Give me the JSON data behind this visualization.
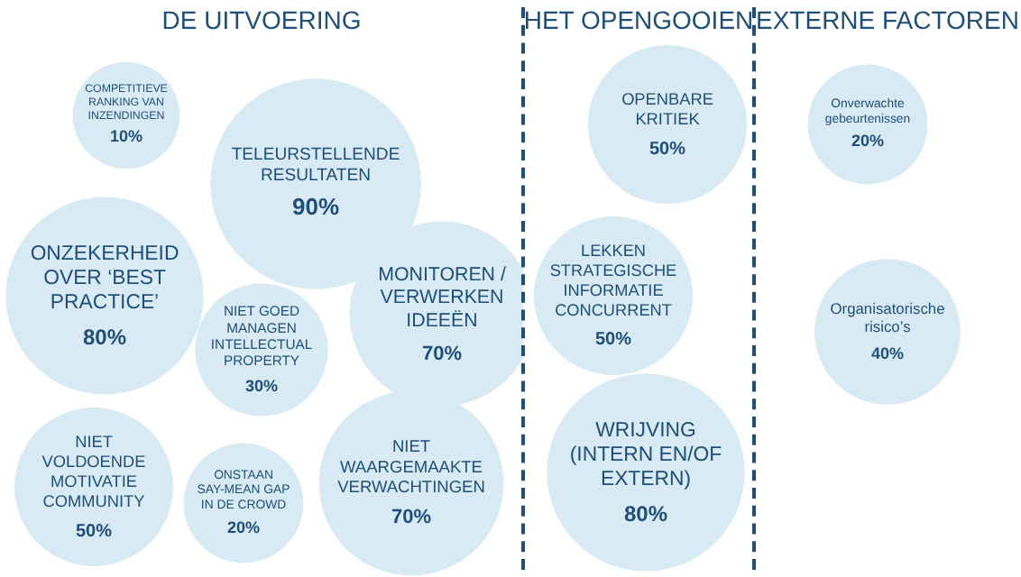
{
  "chart_data": [
    {
      "type": "other",
      "title": "DE UITVOERING",
      "color": "#d8eaf3",
      "categories": [
        "COMPETITIEVE RANKING VAN INZENDINGEN",
        "TELEURSTELLENDE RESULTATEN",
        "ONZEKERHEID OVER ‘BEST PRACTICE’",
        "MONITOREN / VERWERKEN IDEEËN",
        "NIET GOED MANAGEN INTELLECTUAL PROPERTY",
        "NIET VOLDOENDE MOTIVATIE COMMUNITY",
        "ONSTAAN SAY-MEAN GAP IN DE CROWD",
        "NIET WAARGEMAAKTE VERWACHTINGEN"
      ],
      "values": [
        10,
        90,
        80,
        70,
        30,
        50,
        20,
        70
      ],
      "value_labels": [
        "10%",
        "90%",
        "80%",
        "70%",
        "30%",
        "50%",
        "20%",
        "70%"
      ]
    },
    {
      "type": "other",
      "title": "HET OPENGOOIEN",
      "color": "#d8eaf3",
      "categories": [
        "OPENBARE KRITIEK",
        "LEKKEN STRATEGISCHE INFORMATIE CONCURRENT",
        "WRIJVING (INTERN EN/OF EXTERN)"
      ],
      "values": [
        50,
        50,
        80
      ],
      "value_labels": [
        "50%",
        "50%",
        "80%"
      ]
    },
    {
      "type": "other",
      "title": "EXTERNE FACTOREN",
      "color": "#d8eaf3",
      "categories": [
        "Onverwachte gebeurtenissen",
        "Organisatorische risico’s"
      ],
      "values": [
        20,
        40
      ],
      "value_labels": [
        "20%",
        "40%"
      ]
    }
  ]
}
